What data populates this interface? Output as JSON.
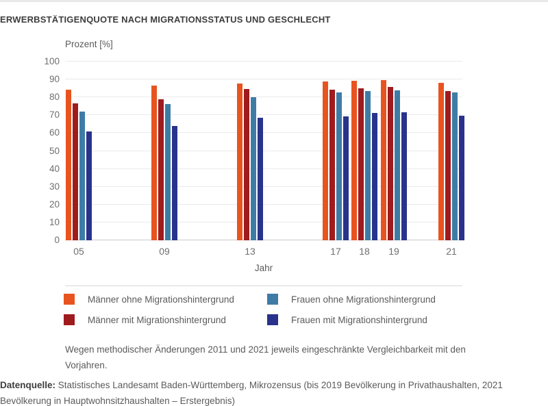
{
  "title": "ERWERBSTÄTIGENQUOTE NACH MIGRATIONSSTATUS UND GESCHLECHT",
  "chart_data": {
    "type": "bar",
    "title": "ERWERBSTÄTIGENQUOTE NACH MIGRATIONSSTATUS UND GESCHLECHT",
    "y_axis_title": "Prozent [%]",
    "xlabel": "Jahr",
    "ylim": [
      0,
      100
    ],
    "yticks": [
      0,
      10,
      20,
      30,
      40,
      50,
      60,
      70,
      80,
      90,
      100
    ],
    "grid": true,
    "legend_position": "bottom",
    "categories": [
      "05",
      "09",
      "13",
      "17",
      "18",
      "19",
      "21"
    ],
    "series": [
      {
        "name": "Männer ohne Migrationshintergrund",
        "color": "#e8541f",
        "values": [
          84.4,
          86.5,
          87.6,
          88.9,
          89.4,
          89.5,
          88.0
        ]
      },
      {
        "name": "Männer mit Migrationshintergrund",
        "color": "#9e1b1e",
        "values": [
          76.6,
          79.0,
          84.6,
          84.3,
          85.1,
          85.8,
          83.7
        ]
      },
      {
        "name": "Frauen ohne Migrationshintergrund",
        "color": "#3e7ca6",
        "values": [
          72.1,
          76.4,
          80.0,
          82.7,
          83.5,
          83.9,
          82.8
        ]
      },
      {
        "name": "Frauen mit Migrationshintergrund",
        "color": "#29338c",
        "values": [
          61.0,
          63.9,
          68.4,
          69.2,
          71.4,
          71.8,
          69.9
        ]
      }
    ]
  },
  "note": "Wegen methodischer Änderungen 2011 und 2021 jeweils eingeschränkte Vergleichbarkeit mit den Vorjahren.",
  "source": {
    "label": "Datenquelle:",
    "text": " Statistisches Landesamt Baden-Württemberg, Mikrozensus (bis 2019 Bevölkerung in Privathaushalten, 2021 Bevölkerung in Hauptwohnsitzhaushalten – Erstergebnis)"
  }
}
